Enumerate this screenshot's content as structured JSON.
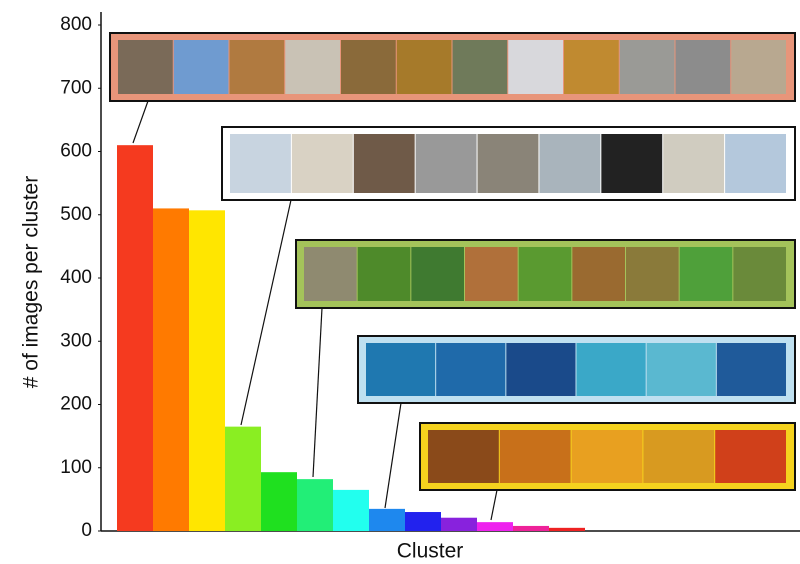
{
  "chart_data": {
    "type": "bar",
    "categories": [
      null,
      null,
      null,
      null,
      null,
      null,
      null,
      null,
      null,
      null,
      null,
      null,
      null
    ],
    "values": [
      610,
      510,
      507,
      165,
      93,
      82,
      65,
      35,
      30,
      21,
      14,
      8,
      5
    ],
    "colors": [
      "#f53a1f",
      "#ff7a00",
      "#ffe600",
      "#8aee22",
      "#1fe01f",
      "#22ee77",
      "#22ffee",
      "#1e88ee",
      "#2222ee",
      "#8822dd",
      "#ee22ee",
      "#ee2299",
      "#ee2222"
    ],
    "xlabel": "Cluster",
    "ylabel": "# of images per cluster",
    "ylim": [
      0,
      800
    ],
    "yticks": [
      0,
      100,
      200,
      300,
      400,
      500,
      600,
      700,
      800
    ],
    "grid": false
  }
}
